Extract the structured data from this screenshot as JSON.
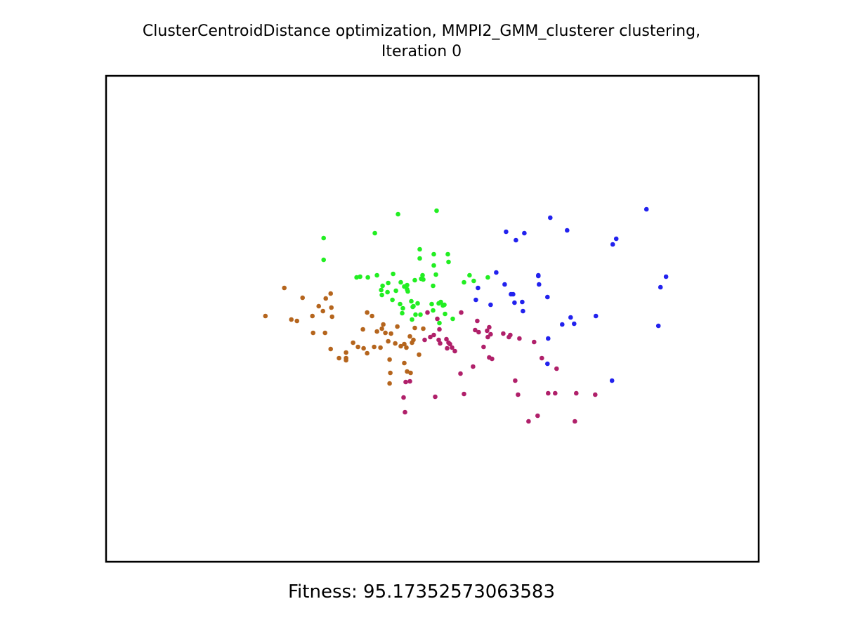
{
  "title_line1": "ClusterCentroidDistance optimization, MMPI2_GMM_clusterer clustering,",
  "title_line2": "Iteration 0",
  "fitness_text": "Fitness: 95.17352573063583",
  "chart_data": {
    "type": "scatter",
    "xlim": [
      0,
      930
    ],
    "ylim": [
      0,
      692
    ],
    "axes_visible": false,
    "grid": false,
    "series": [
      {
        "color": "#b5651d",
        "points": [
          [
            227,
            350
          ],
          [
            254,
            390
          ],
          [
            264,
            345
          ],
          [
            272,
            343
          ],
          [
            280,
            376
          ],
          [
            294,
            350
          ],
          [
            303,
            364
          ],
          [
            309,
            357
          ],
          [
            312,
            326
          ],
          [
            313,
            375
          ],
          [
            320,
            303
          ],
          [
            320,
            382
          ],
          [
            321,
            362
          ],
          [
            322,
            349
          ],
          [
            332,
            290
          ],
          [
            342,
            290
          ],
          [
            342,
            298
          ],
          [
            352,
            312
          ],
          [
            359,
            306
          ],
          [
            366,
            331
          ],
          [
            367,
            304
          ],
          [
            372,
            297
          ],
          [
            372,
            355
          ],
          [
            379,
            350
          ],
          [
            382,
            306
          ],
          [
            386,
            328
          ],
          [
            391,
            305
          ],
          [
            393,
            332
          ],
          [
            395,
            338
          ],
          [
            398,
            326
          ],
          [
            402,
            314
          ],
          [
            404,
            288
          ],
          [
            404,
            254
          ],
          [
            406,
            325
          ],
          [
            412,
            311
          ],
          [
            415,
            335
          ],
          [
            420,
            307
          ],
          [
            425,
            310
          ],
          [
            428,
            305
          ],
          [
            433,
            321
          ],
          [
            436,
            312
          ],
          [
            438,
            316
          ],
          [
            440,
            333
          ],
          [
            446,
            295
          ],
          [
            452,
            332
          ],
          [
            429,
            271
          ],
          [
            434,
            269
          ],
          [
            342,
            287
          ],
          [
            295,
            326
          ],
          [
            405,
            269
          ],
          [
            425,
            283
          ]
        ]
      },
      {
        "color": "#22ee22",
        "points": [
          [
            310,
            461
          ],
          [
            310,
            430
          ],
          [
            383,
            468
          ],
          [
            416,
            495
          ],
          [
            471,
            500
          ],
          [
            447,
            445
          ],
          [
            447,
            432
          ],
          [
            467,
            438
          ],
          [
            467,
            422
          ],
          [
            487,
            438
          ],
          [
            488,
            427
          ],
          [
            449,
            403
          ],
          [
            452,
            402
          ],
          [
            470,
            409
          ],
          [
            386,
            408
          ],
          [
            409,
            410
          ],
          [
            394,
            393
          ],
          [
            392,
            387
          ],
          [
            393,
            380
          ],
          [
            402,
            397
          ],
          [
            429,
            394
          ],
          [
            401,
            384
          ],
          [
            413,
            386
          ],
          [
            425,
            392
          ],
          [
            429,
            388
          ],
          [
            440,
            401
          ],
          [
            419,
            367
          ],
          [
            423,
            361
          ],
          [
            435,
            371
          ],
          [
            438,
            364
          ],
          [
            444,
            368
          ],
          [
            437,
            363
          ],
          [
            441,
            352
          ],
          [
            436,
            345
          ],
          [
            448,
            352
          ],
          [
            422,
            354
          ],
          [
            430,
            385
          ],
          [
            464,
            367
          ],
          [
            474,
            368
          ],
          [
            477,
            370
          ],
          [
            480,
            365
          ],
          [
            482,
            366
          ],
          [
            510,
            398
          ],
          [
            518,
            408
          ],
          [
            524,
            400
          ],
          [
            544,
            405
          ],
          [
            483,
            353
          ],
          [
            494,
            346
          ],
          [
            475,
            340
          ],
          [
            466,
            358
          ],
          [
            362,
            406
          ],
          [
            408,
            373
          ],
          [
            357,
            405
          ],
          [
            373,
            405
          ],
          [
            420,
            398
          ],
          [
            451,
            408
          ],
          [
            466,
            393
          ]
        ]
      },
      {
        "color": "#b0206a",
        "points": [
          [
            458,
            355
          ],
          [
            472,
            346
          ],
          [
            475,
            331
          ],
          [
            467,
            323
          ],
          [
            462,
            320
          ],
          [
            474,
            316
          ],
          [
            476,
            311
          ],
          [
            485,
            317
          ],
          [
            488,
            312
          ],
          [
            490,
            310
          ],
          [
            486,
            304
          ],
          [
            493,
            305
          ],
          [
            497,
            300
          ],
          [
            506,
            355
          ],
          [
            529,
            343
          ],
          [
            531,
            327
          ],
          [
            526,
            330
          ],
          [
            543,
            329
          ],
          [
            546,
            334
          ],
          [
            548,
            324
          ],
          [
            538,
            306
          ],
          [
            546,
            291
          ],
          [
            550,
            289
          ],
          [
            505,
            268
          ],
          [
            523,
            278
          ],
          [
            510,
            239
          ],
          [
            544,
            320
          ],
          [
            566,
            325
          ],
          [
            574,
            320
          ],
          [
            576,
            323
          ],
          [
            589,
            318
          ],
          [
            610,
            313
          ],
          [
            621,
            290
          ],
          [
            642,
            275
          ],
          [
            583,
            258
          ],
          [
            587,
            238
          ],
          [
            630,
            240
          ],
          [
            640,
            240
          ],
          [
            670,
            240
          ],
          [
            697,
            238
          ],
          [
            668,
            200
          ],
          [
            602,
            200
          ],
          [
            615,
            208
          ],
          [
            424,
            234
          ],
          [
            427,
            256
          ],
          [
            433,
            257
          ],
          [
            469,
            235
          ],
          [
            426,
            213
          ],
          [
            454,
            316
          ]
        ]
      },
      {
        "color": "#2222ee",
        "points": [
          [
            770,
            502
          ],
          [
            633,
            490
          ],
          [
            657,
            472
          ],
          [
            570,
            470
          ],
          [
            584,
            458
          ],
          [
            596,
            468
          ],
          [
            727,
            460
          ],
          [
            722,
            452
          ],
          [
            798,
            406
          ],
          [
            790,
            391
          ],
          [
            787,
            336
          ],
          [
            698,
            350
          ],
          [
            662,
            348
          ],
          [
            650,
            338
          ],
          [
            667,
            339
          ],
          [
            630,
            318
          ],
          [
            629,
            282
          ],
          [
            721,
            258
          ],
          [
            556,
            412
          ],
          [
            616,
            407
          ],
          [
            617,
            395
          ],
          [
            568,
            395
          ],
          [
            580,
            381
          ],
          [
            582,
            369
          ],
          [
            594,
            357
          ],
          [
            527,
            373
          ],
          [
            548,
            366
          ],
          [
            616,
            408
          ],
          [
            629,
            377
          ],
          [
            577,
            381
          ],
          [
            593,
            370
          ],
          [
            530,
            390
          ]
        ]
      }
    ]
  }
}
